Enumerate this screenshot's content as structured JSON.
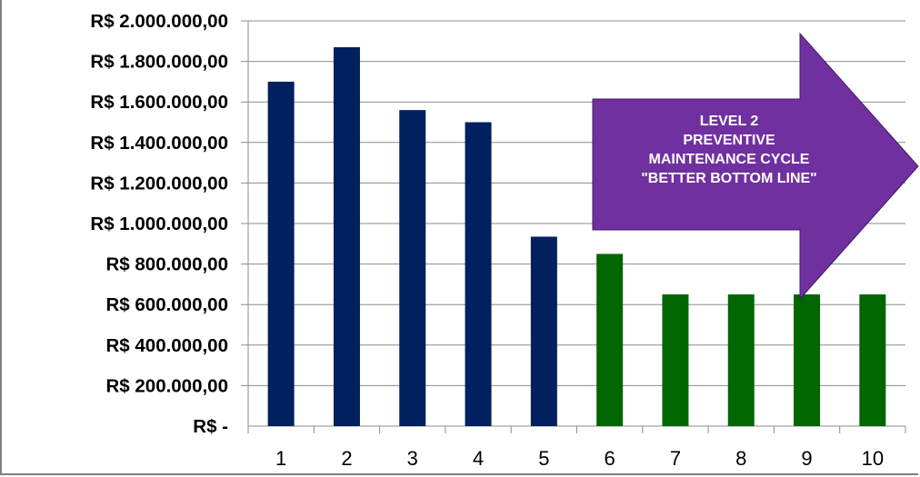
{
  "chart_data": {
    "type": "bar",
    "categories": [
      "1",
      "2",
      "3",
      "4",
      "5",
      "6",
      "7",
      "8",
      "9",
      "10"
    ],
    "values": [
      1700000,
      1870000,
      1560000,
      1500000,
      935000,
      850000,
      650000,
      650000,
      650000,
      650000
    ],
    "bar_colors": [
      "#002060",
      "#002060",
      "#002060",
      "#002060",
      "#002060",
      "#006600",
      "#006600",
      "#006600",
      "#006600",
      "#006600"
    ],
    "ylim": [
      0,
      2000000
    ],
    "yticks": [
      0,
      200000,
      400000,
      600000,
      800000,
      1000000,
      1200000,
      1400000,
      1600000,
      1800000,
      2000000
    ],
    "ytick_labels": [
      "R$ -",
      "R$ 200.000,00",
      "R$ 400.000,00",
      "R$ 600.000,00",
      "R$ 800.000,00",
      "R$ 1.000.000,00",
      "R$ 1.200.000,00",
      "R$ 1.400.000,00",
      "R$ 1.600.000,00",
      "R$ 1.800.000,00",
      "R$ 2.000.000,00"
    ],
    "grid": true,
    "annotation": {
      "shape": "right-arrow",
      "color": "#7030a0",
      "lines": [
        "LEVEL 2",
        "PREVENTIVE",
        "MAINTENANCE CYCLE",
        "\"BETTER BOTTOM LINE\""
      ]
    }
  }
}
